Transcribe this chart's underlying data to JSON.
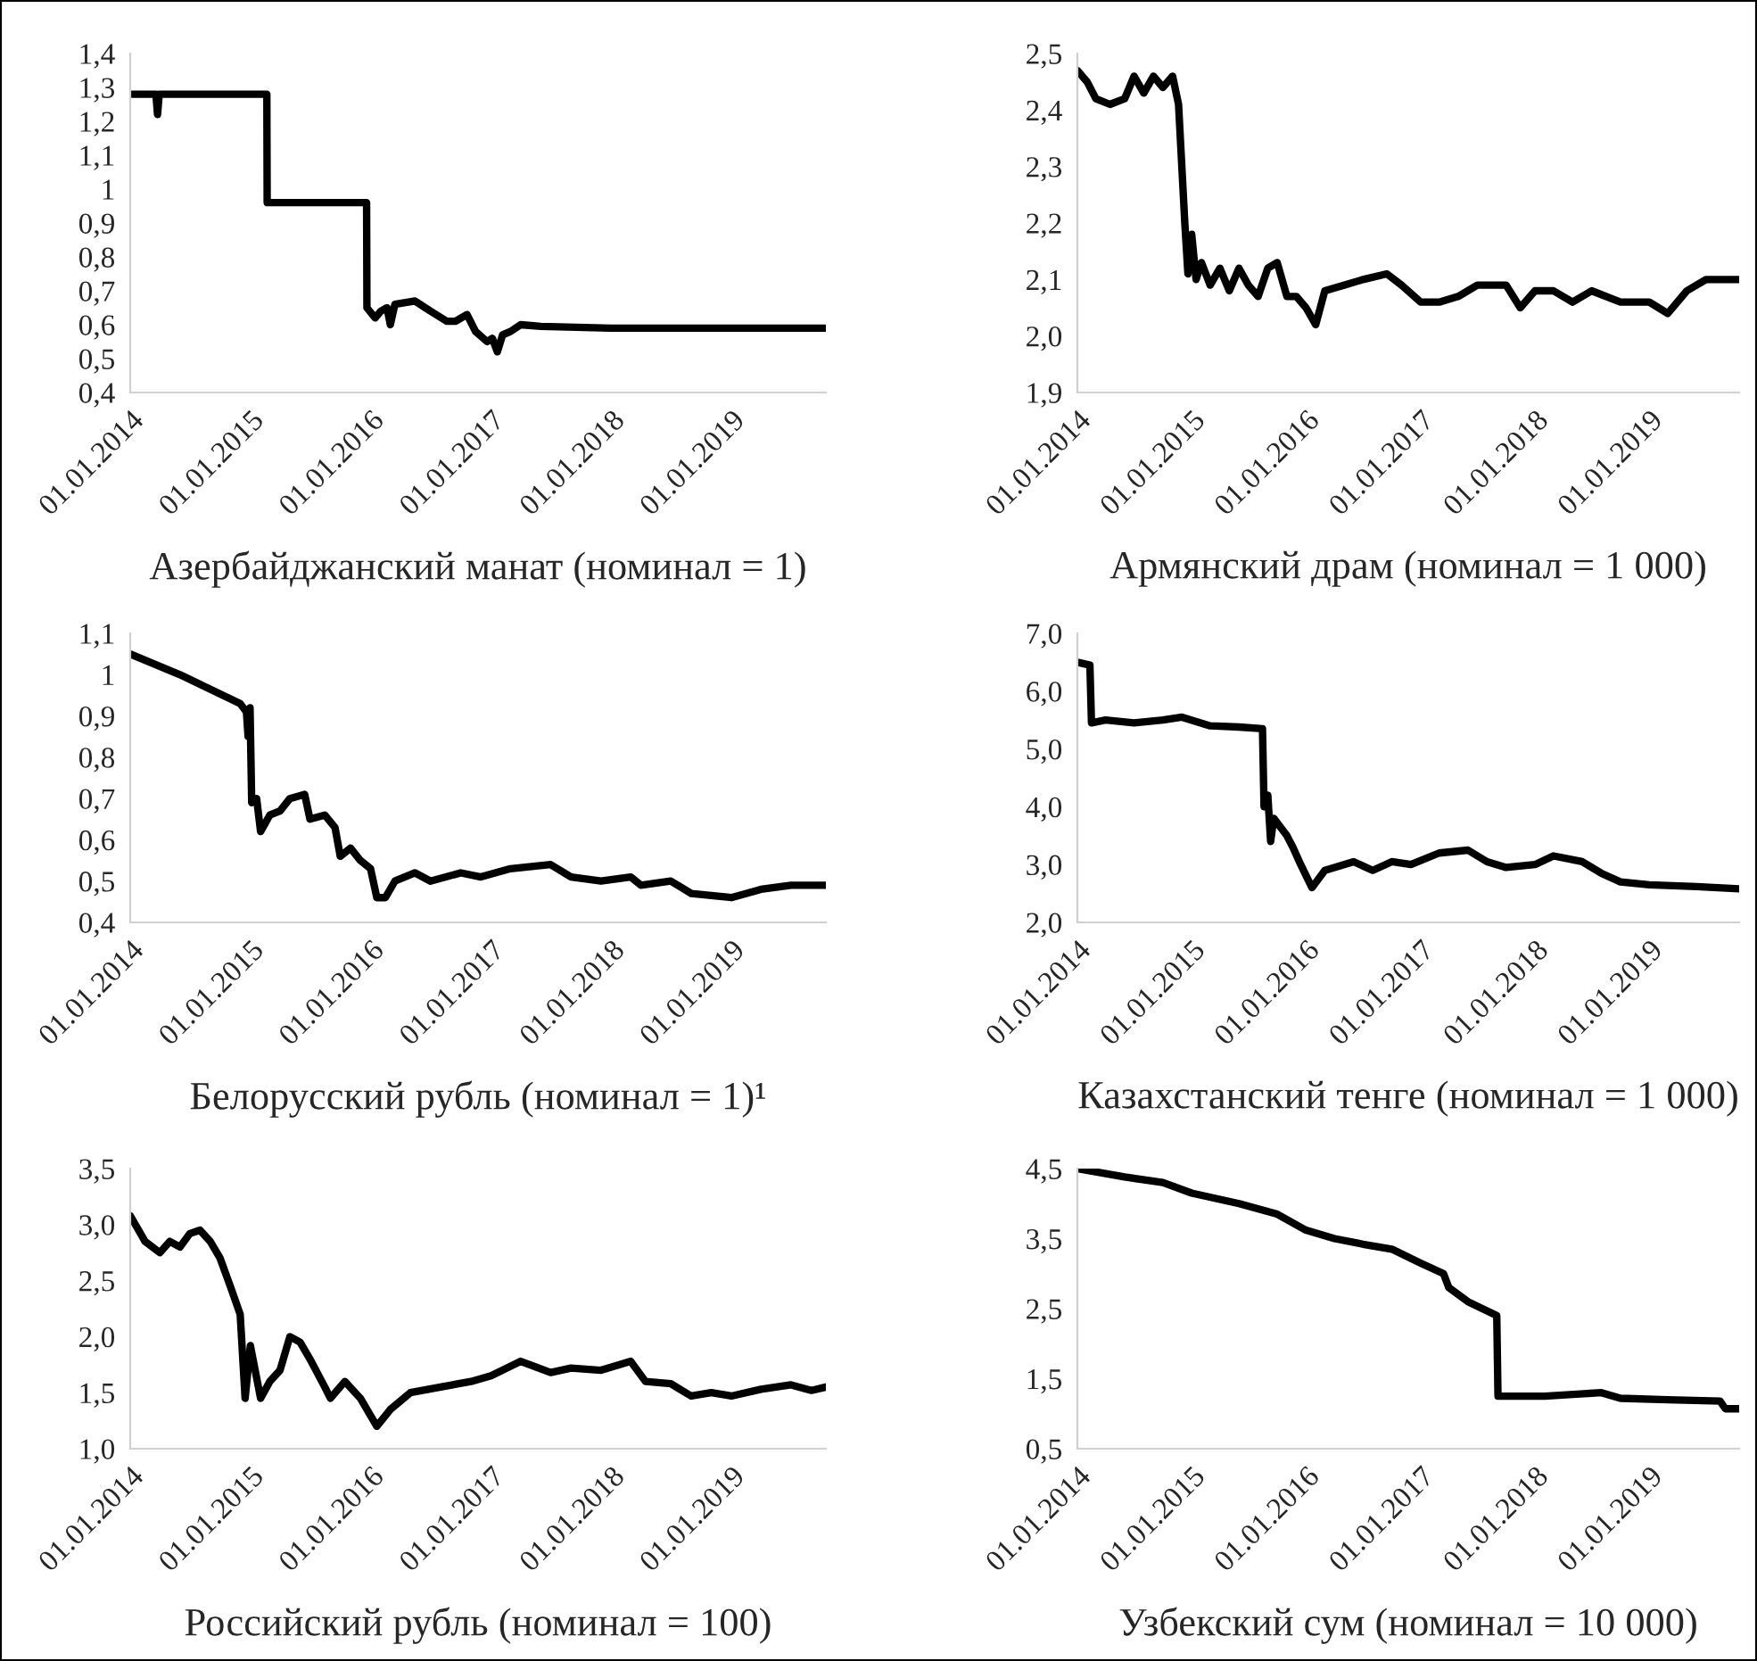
{
  "chart_data": [
    {
      "type": "line",
      "xlabel": "Азербайджанский манат (номинал = 1)",
      "x": [
        "2014-01-01",
        "2014-03-20",
        "2014-03-25",
        "2014-03-30",
        "2015-02-20",
        "2015-02-21",
        "2015-12-20",
        "2015-12-21",
        "2016-01-15",
        "2016-02-01",
        "2016-02-20",
        "2016-03-01",
        "2016-03-15",
        "2016-05-15",
        "2016-07-01",
        "2016-08-20",
        "2016-09-15",
        "2016-10-20",
        "2016-11-15",
        "2016-12-20",
        "2017-01-05",
        "2017-01-20",
        "2017-02-05",
        "2017-03-01",
        "2017-04-01",
        "2017-06-01",
        "2018-01-01",
        "2019-10-15"
      ],
      "series": [
        {
          "color": "#000000",
          "values": [
            1.28,
            1.28,
            1.22,
            1.28,
            1.28,
            0.96,
            0.96,
            0.65,
            0.62,
            0.64,
            0.65,
            0.6,
            0.66,
            0.67,
            0.64,
            0.61,
            0.61,
            0.63,
            0.58,
            0.55,
            0.56,
            0.52,
            0.57,
            0.58,
            0.6,
            0.595,
            0.59,
            0.59
          ]
        }
      ],
      "xlim": [
        "2014-01-01",
        "2019-10-15"
      ],
      "xticks": [
        {
          "value": "2014-01-01",
          "label": "01.01.2014"
        },
        {
          "value": "2015-01-01",
          "label": "01.01.2015"
        },
        {
          "value": "2016-01-01",
          "label": "01.01.2016"
        },
        {
          "value": "2017-01-01",
          "label": "01.01.2017"
        },
        {
          "value": "2018-01-01",
          "label": "01.01.2018"
        },
        {
          "value": "2019-01-01",
          "label": "01.01.2019"
        }
      ],
      "ylim": [
        0.4,
        1.4
      ],
      "yticks": [
        {
          "value": 0.4,
          "label": "0,4"
        },
        {
          "value": 0.5,
          "label": "0,5"
        },
        {
          "value": 0.6,
          "label": "0,6"
        },
        {
          "value": 0.7,
          "label": "0,7"
        },
        {
          "value": 0.8,
          "label": "0,8"
        },
        {
          "value": 0.9,
          "label": "0,9"
        },
        {
          "value": 1,
          "label": "1"
        },
        {
          "value": 1.1,
          "label": "1,1"
        },
        {
          "value": 1.2,
          "label": "1,2"
        },
        {
          "value": 1.3,
          "label": "1,3"
        },
        {
          "value": 1.4,
          "label": "1,4"
        }
      ]
    },
    {
      "type": "line",
      "xlabel": "Армянский драм (номинал = 1 000)",
      "x": [
        "2014-01-01",
        "2014-02-01",
        "2014-03-01",
        "2014-04-15",
        "2014-06-01",
        "2014-07-01",
        "2014-08-01",
        "2014-09-01",
        "2014-10-01",
        "2014-11-01",
        "2014-11-20",
        "2014-12-10",
        "2014-12-20",
        "2015-01-01",
        "2015-01-15",
        "2015-02-01",
        "2015-03-01",
        "2015-04-01",
        "2015-05-01",
        "2015-06-01",
        "2015-07-01",
        "2015-08-01",
        "2015-09-01",
        "2015-10-01",
        "2015-11-01",
        "2015-12-01",
        "2016-01-01",
        "2016-02-01",
        "2016-03-01",
        "2016-05-01",
        "2016-07-01",
        "2016-09-15",
        "2016-11-01",
        "2017-01-01",
        "2017-03-01",
        "2017-05-01",
        "2017-07-01",
        "2017-10-01",
        "2017-11-15",
        "2018-01-01",
        "2018-03-01",
        "2018-05-01",
        "2018-07-01",
        "2018-10-01",
        "2019-01-01",
        "2019-03-01",
        "2019-05-01",
        "2019-07-01",
        "2019-10-15"
      ],
      "series": [
        {
          "color": "#000000",
          "values": [
            2.47,
            2.45,
            2.42,
            2.41,
            2.42,
            2.46,
            2.43,
            2.46,
            2.44,
            2.46,
            2.41,
            2.2,
            2.11,
            2.18,
            2.1,
            2.13,
            2.09,
            2.12,
            2.08,
            2.12,
            2.09,
            2.07,
            2.12,
            2.13,
            2.07,
            2.07,
            2.05,
            2.02,
            2.08,
            2.09,
            2.1,
            2.11,
            2.09,
            2.06,
            2.06,
            2.07,
            2.09,
            2.09,
            2.05,
            2.08,
            2.08,
            2.06,
            2.08,
            2.06,
            2.06,
            2.04,
            2.08,
            2.1,
            2.1
          ]
        }
      ],
      "xlim": [
        "2014-01-01",
        "2019-10-15"
      ],
      "xticks": [
        {
          "value": "2014-01-01",
          "label": "01.01.2014"
        },
        {
          "value": "2015-01-01",
          "label": "01.01.2015"
        },
        {
          "value": "2016-01-01",
          "label": "01.01.2016"
        },
        {
          "value": "2017-01-01",
          "label": "01.01.2017"
        },
        {
          "value": "2018-01-01",
          "label": "01.01.2018"
        },
        {
          "value": "2019-01-01",
          "label": "01.01.2019"
        }
      ],
      "ylim": [
        1.9,
        2.5
      ],
      "yticks": [
        {
          "value": 1.9,
          "label": "1,9"
        },
        {
          "value": 2.0,
          "label": "2,0"
        },
        {
          "value": 2.1,
          "label": "2,1"
        },
        {
          "value": 2.2,
          "label": "2,2"
        },
        {
          "value": 2.3,
          "label": "2,3"
        },
        {
          "value": 2.4,
          "label": "2,4"
        },
        {
          "value": 2.5,
          "label": "2,5"
        }
      ]
    },
    {
      "type": "line",
      "xlabel": "Белорусский рубль (номинал = 1)¹",
      "x": [
        "2014-01-01",
        "2014-06-01",
        "2014-12-01",
        "2014-12-20",
        "2014-12-25",
        "2014-12-31",
        "2015-01-05",
        "2015-01-20",
        "2015-02-01",
        "2015-03-01",
        "2015-04-01",
        "2015-05-01",
        "2015-06-15",
        "2015-07-01",
        "2015-08-15",
        "2015-09-15",
        "2015-10-01",
        "2015-11-01",
        "2015-12-01",
        "2016-01-01",
        "2016-01-20",
        "2016-02-15",
        "2016-03-15",
        "2016-05-15",
        "2016-07-01",
        "2016-10-01",
        "2016-12-01",
        "2017-03-01",
        "2017-07-01",
        "2017-09-01",
        "2017-12-01",
        "2018-03-01",
        "2018-04-01",
        "2018-07-01",
        "2018-09-01",
        "2019-01-01",
        "2019-04-01",
        "2019-07-01",
        "2019-10-15"
      ],
      "series": [
        {
          "color": "#000000",
          "values": [
            1.05,
            1.0,
            0.93,
            0.91,
            0.85,
            0.92,
            0.69,
            0.7,
            0.62,
            0.66,
            0.67,
            0.7,
            0.71,
            0.65,
            0.66,
            0.63,
            0.56,
            0.58,
            0.55,
            0.53,
            0.46,
            0.46,
            0.5,
            0.52,
            0.5,
            0.52,
            0.51,
            0.53,
            0.54,
            0.51,
            0.5,
            0.51,
            0.49,
            0.5,
            0.47,
            0.46,
            0.48,
            0.49,
            0.49
          ]
        }
      ],
      "xlim": [
        "2014-01-01",
        "2019-10-15"
      ],
      "xticks": [
        {
          "value": "2014-01-01",
          "label": "01.01.2014"
        },
        {
          "value": "2015-01-01",
          "label": "01.01.2015"
        },
        {
          "value": "2016-01-01",
          "label": "01.01.2016"
        },
        {
          "value": "2017-01-01",
          "label": "01.01.2017"
        },
        {
          "value": "2018-01-01",
          "label": "01.01.2018"
        },
        {
          "value": "2019-01-01",
          "label": "01.01.2019"
        }
      ],
      "ylim": [
        0.4,
        1.1
      ],
      "yticks": [
        {
          "value": 0.4,
          "label": "0,4"
        },
        {
          "value": 0.5,
          "label": "0,5"
        },
        {
          "value": 0.6,
          "label": "0,6"
        },
        {
          "value": 0.7,
          "label": "0,7"
        },
        {
          "value": 0.8,
          "label": "0,8"
        },
        {
          "value": 0.9,
          "label": "0,9"
        },
        {
          "value": 1,
          "label": "1"
        },
        {
          "value": 1.1,
          "label": "1,1"
        }
      ]
    },
    {
      "type": "line",
      "xlabel": "Казахстанский тенге (номинал = 1 000)",
      "x": [
        "2014-01-01",
        "2014-02-10",
        "2014-02-15",
        "2014-04-01",
        "2014-07-01",
        "2014-10-01",
        "2014-12-01",
        "2015-03-01",
        "2015-06-01",
        "2015-08-15",
        "2015-08-20",
        "2015-09-01",
        "2015-09-10",
        "2015-09-20",
        "2015-11-01",
        "2015-11-20",
        "2015-12-15",
        "2016-01-20",
        "2016-03-01",
        "2016-06-01",
        "2016-08-01",
        "2016-10-01",
        "2016-12-01",
        "2017-03-01",
        "2017-06-01",
        "2017-08-01",
        "2017-10-01",
        "2018-01-01",
        "2018-03-01",
        "2018-06-01",
        "2018-08-01",
        "2018-10-01",
        "2019-01-01",
        "2019-06-01",
        "2019-10-15"
      ],
      "series": [
        {
          "color": "#000000",
          "values": [
            6.5,
            6.45,
            5.45,
            5.5,
            5.45,
            5.5,
            5.55,
            5.4,
            5.38,
            5.35,
            4.0,
            4.2,
            3.4,
            3.8,
            3.5,
            3.3,
            3.0,
            2.6,
            2.9,
            3.05,
            2.9,
            3.05,
            3.0,
            3.2,
            3.25,
            3.05,
            2.95,
            3.0,
            3.15,
            3.05,
            2.85,
            2.7,
            2.65,
            2.62,
            2.58
          ]
        }
      ],
      "xlim": [
        "2014-01-01",
        "2019-10-15"
      ],
      "xticks": [
        {
          "value": "2014-01-01",
          "label": "01.01.2014"
        },
        {
          "value": "2015-01-01",
          "label": "01.01.2015"
        },
        {
          "value": "2016-01-01",
          "label": "01.01.2016"
        },
        {
          "value": "2017-01-01",
          "label": "01.01.2017"
        },
        {
          "value": "2018-01-01",
          "label": "01.01.2018"
        },
        {
          "value": "2019-01-01",
          "label": "01.01.2019"
        }
      ],
      "ylim": [
        2.0,
        7.0
      ],
      "yticks": [
        {
          "value": 2,
          "label": "2,0"
        },
        {
          "value": 3,
          "label": "3,0"
        },
        {
          "value": 4,
          "label": "4,0"
        },
        {
          "value": 5,
          "label": "5,0"
        },
        {
          "value": 6,
          "label": "6,0"
        },
        {
          "value": 7,
          "label": "7,0"
        }
      ]
    },
    {
      "type": "line",
      "xlabel": "Российский рубль (номинал = 100)",
      "x": [
        "2014-01-01",
        "2014-02-15",
        "2014-04-01",
        "2014-05-01",
        "2014-06-01",
        "2014-07-01",
        "2014-08-01",
        "2014-09-01",
        "2014-10-01",
        "2014-11-01",
        "2014-12-01",
        "2014-12-16",
        "2015-01-01",
        "2015-02-01",
        "2015-03-01",
        "2015-04-01",
        "2015-05-01",
        "2015-06-01",
        "2015-07-01",
        "2015-08-15",
        "2015-09-01",
        "2015-10-15",
        "2015-12-01",
        "2016-01-20",
        "2016-03-01",
        "2016-05-01",
        "2016-08-01",
        "2016-11-01",
        "2017-01-01",
        "2017-04-01",
        "2017-07-01",
        "2017-09-01",
        "2017-12-01",
        "2018-03-01",
        "2018-04-15",
        "2018-07-01",
        "2018-09-01",
        "2018-11-01",
        "2019-01-01",
        "2019-04-01",
        "2019-07-01",
        "2019-09-01",
        "2019-10-15"
      ],
      "series": [
        {
          "color": "#000000",
          "values": [
            3.08,
            2.85,
            2.75,
            2.85,
            2.8,
            2.92,
            2.95,
            2.85,
            2.7,
            2.45,
            2.2,
            1.45,
            1.92,
            1.45,
            1.6,
            1.7,
            2.0,
            1.95,
            1.8,
            1.55,
            1.45,
            1.6,
            1.45,
            1.2,
            1.35,
            1.5,
            1.55,
            1.6,
            1.65,
            1.78,
            1.68,
            1.72,
            1.7,
            1.78,
            1.6,
            1.58,
            1.47,
            1.5,
            1.47,
            1.53,
            1.57,
            1.52,
            1.55
          ]
        }
      ],
      "xlim": [
        "2014-01-01",
        "2019-10-15"
      ],
      "xticks": [
        {
          "value": "2014-01-01",
          "label": "01.01.2014"
        },
        {
          "value": "2015-01-01",
          "label": "01.01.2015"
        },
        {
          "value": "2016-01-01",
          "label": "01.01.2016"
        },
        {
          "value": "2017-01-01",
          "label": "01.01.2017"
        },
        {
          "value": "2018-01-01",
          "label": "01.01.2018"
        },
        {
          "value": "2019-01-01",
          "label": "01.01.2019"
        }
      ],
      "ylim": [
        1.0,
        3.5
      ],
      "yticks": [
        {
          "value": 1.0,
          "label": "1,0"
        },
        {
          "value": 1.5,
          "label": "1,5"
        },
        {
          "value": 2.0,
          "label": "2,0"
        },
        {
          "value": 2.5,
          "label": "2,5"
        },
        {
          "value": 3.0,
          "label": "3,0"
        },
        {
          "value": 3.5,
          "label": "3,5"
        }
      ]
    },
    {
      "type": "line",
      "xlabel": "Узбекский сум (номинал = 10 000)",
      "x": [
        "2014-01-01",
        "2014-06-01",
        "2014-10-01",
        "2015-01-01",
        "2015-06-01",
        "2015-10-01",
        "2016-01-01",
        "2016-04-01",
        "2016-07-01",
        "2016-10-01",
        "2017-01-01",
        "2017-03-15",
        "2017-04-01",
        "2017-06-01",
        "2017-09-01",
        "2017-09-05",
        "2018-02-01",
        "2018-08-01",
        "2018-10-01",
        "2019-03-01",
        "2019-08-15",
        "2019-09-01",
        "2019-10-15"
      ],
      "series": [
        {
          "color": "#000000",
          "values": [
            4.5,
            4.38,
            4.3,
            4.15,
            4.0,
            3.85,
            3.62,
            3.5,
            3.42,
            3.35,
            3.15,
            3.0,
            2.8,
            2.6,
            2.4,
            1.25,
            1.25,
            1.3,
            1.22,
            1.2,
            1.18,
            1.07,
            1.07
          ]
        }
      ],
      "xlim": [
        "2014-01-01",
        "2019-10-15"
      ],
      "xticks": [
        {
          "value": "2014-01-01",
          "label": "01.01.2014"
        },
        {
          "value": "2015-01-01",
          "label": "01.01.2015"
        },
        {
          "value": "2016-01-01",
          "label": "01.01.2016"
        },
        {
          "value": "2017-01-01",
          "label": "01.01.2017"
        },
        {
          "value": "2018-01-01",
          "label": "01.01.2018"
        },
        {
          "value": "2019-01-01",
          "label": "01.01.2019"
        }
      ],
      "ylim": [
        0.5,
        4.5
      ],
      "yticks": [
        {
          "value": 0.5,
          "label": "0,5"
        },
        {
          "value": 1.5,
          "label": "1,5"
        },
        {
          "value": 2.5,
          "label": "2,5"
        },
        {
          "value": 3.5,
          "label": "3,5"
        },
        {
          "value": 4.5,
          "label": "4,5"
        }
      ]
    }
  ]
}
